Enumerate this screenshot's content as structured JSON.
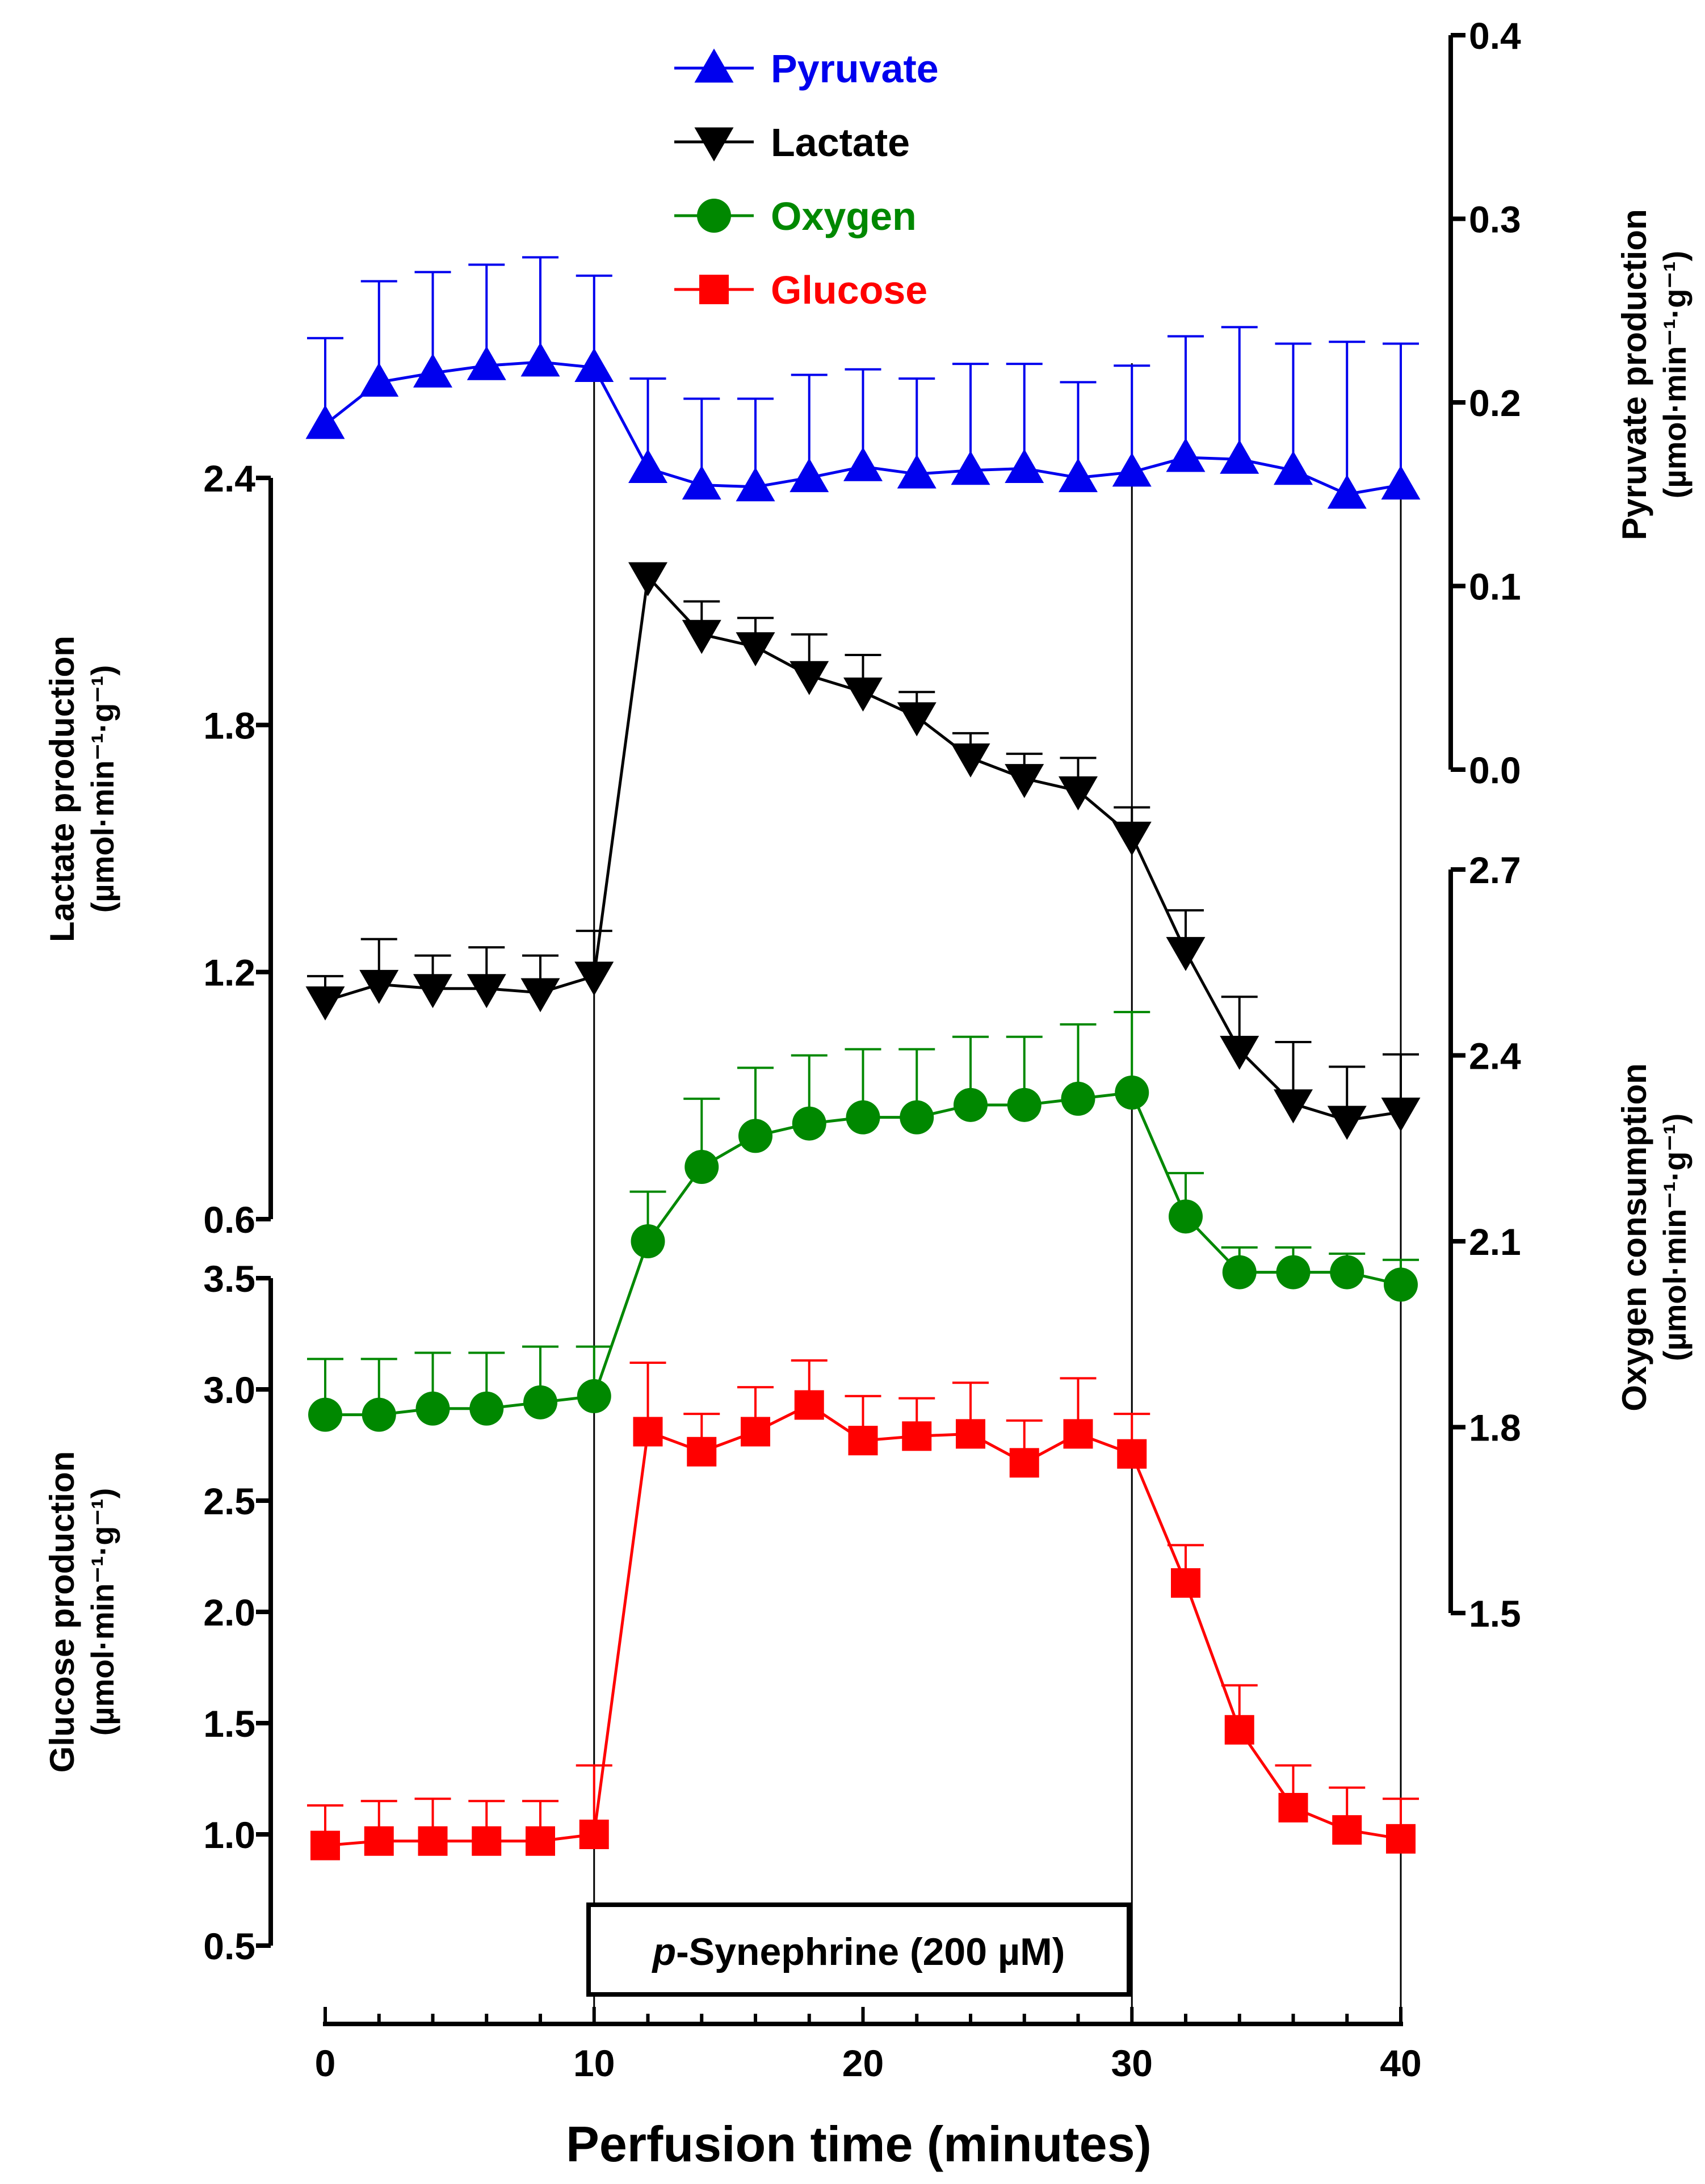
{
  "chart_data": {
    "type": "line",
    "x": [
      0,
      2,
      4,
      6,
      8,
      10,
      12,
      14,
      16,
      18,
      20,
      22,
      24,
      26,
      28,
      30,
      32,
      34,
      36,
      38,
      40
    ],
    "xlabel": "Perfusion time (minutes)",
    "xlim": [
      0,
      40
    ],
    "x_ticks": [
      "0",
      "10",
      "20",
      "30",
      "40"
    ],
    "treatment": {
      "label_prefix": "p",
      "label_rest": "-Synephrine (200 µM)",
      "start": 10,
      "end": 30
    },
    "legend": {
      "position": "top-center",
      "entries": [
        {
          "name": "Pyruvate",
          "marker": "triangle-up",
          "color": "#0000ee"
        },
        {
          "name": "Lactate",
          "marker": "triangle-down",
          "color": "#000000"
        },
        {
          "name": "Oxygen",
          "marker": "circle",
          "color": "#008800"
        },
        {
          "name": "Glucose",
          "marker": "square",
          "color": "#ff0000"
        }
      ]
    },
    "axes": [
      {
        "id": "pyruvate",
        "side": "right",
        "ylabel": "Pyruvate production",
        "yunit_html": "(µmol·min⁻¹·g⁻¹)",
        "ylim": [
          0.0,
          0.4
        ],
        "ticks": [
          "0.0",
          "0.1",
          "0.2",
          "0.3",
          "0.4"
        ]
      },
      {
        "id": "lactate",
        "side": "left",
        "ylabel": "Lactate production",
        "yunit_html": "(µmol·min⁻¹·g⁻¹)",
        "ylim": [
          0.6,
          2.4
        ],
        "ticks": [
          "0.6",
          "1.2",
          "1.8",
          "2.4"
        ]
      },
      {
        "id": "oxygen",
        "side": "right",
        "ylabel": "Oxygen consumption",
        "yunit_html": "(µmol·min⁻¹·g⁻¹)",
        "ylim": [
          1.5,
          2.7
        ],
        "ticks": [
          "1.5",
          "1.8",
          "2.1",
          "2.4",
          "2.7"
        ]
      },
      {
        "id": "glucose",
        "side": "left",
        "ylabel": "Glucose production",
        "yunit_html": "(µmol·min⁻¹·g⁻¹)",
        "ylim": [
          0.5,
          3.5
        ],
        "ticks": [
          "0.5",
          "1.0",
          "1.5",
          "2.0",
          "2.5",
          "3.0",
          "3.5"
        ]
      }
    ],
    "series": [
      {
        "name": "Pyruvate",
        "axis": "pyruvate",
        "color": "#0000ee",
        "marker": "triangle-up",
        "values": [
          0.188,
          0.211,
          0.216,
          0.22,
          0.222,
          0.219,
          0.164,
          0.155,
          0.154,
          0.159,
          0.165,
          0.161,
          0.163,
          0.164,
          0.159,
          0.162,
          0.17,
          0.169,
          0.163,
          0.15,
          0.155
        ],
        "errors": [
          0.047,
          0.055,
          0.055,
          0.055,
          0.057,
          0.05,
          0.049,
          0.047,
          0.048,
          0.056,
          0.053,
          0.052,
          0.058,
          0.057,
          0.052,
          0.058,
          0.066,
          0.072,
          0.069,
          0.083,
          0.077
        ]
      },
      {
        "name": "Lactate",
        "axis": "lactate",
        "color": "#000000",
        "marker": "triangle-down",
        "values": [
          1.13,
          1.17,
          1.16,
          1.16,
          1.15,
          1.19,
          2.16,
          2.02,
          1.99,
          1.92,
          1.88,
          1.82,
          1.72,
          1.67,
          1.64,
          1.53,
          1.25,
          1.01,
          0.88,
          0.84,
          0.86
        ],
        "errors": [
          0.06,
          0.11,
          0.08,
          0.1,
          0.09,
          0.11,
          0.0,
          0.08,
          0.07,
          0.1,
          0.09,
          0.06,
          0.06,
          0.06,
          0.08,
          0.07,
          0.1,
          0.13,
          0.15,
          0.13,
          0.14
        ]
      },
      {
        "name": "Oxygen",
        "axis": "oxygen",
        "color": "#008800",
        "marker": "circle",
        "values": [
          1.82,
          1.82,
          1.83,
          1.83,
          1.84,
          1.85,
          2.1,
          2.22,
          2.27,
          2.29,
          2.3,
          2.3,
          2.32,
          2.32,
          2.33,
          2.34,
          2.14,
          2.05,
          2.05,
          2.05,
          2.03
        ],
        "errors": [
          0.09,
          0.09,
          0.09,
          0.09,
          0.09,
          0.08,
          0.08,
          0.11,
          0.11,
          0.11,
          0.11,
          0.11,
          0.11,
          0.11,
          0.12,
          0.13,
          0.07,
          0.04,
          0.04,
          0.03,
          0.04
        ]
      },
      {
        "name": "Glucose",
        "axis": "glucose",
        "color": "#ff0000",
        "marker": "square",
        "values": [
          0.95,
          0.97,
          0.97,
          0.97,
          0.97,
          1.0,
          2.81,
          2.72,
          2.81,
          2.93,
          2.77,
          2.79,
          2.8,
          2.67,
          2.8,
          2.71,
          2.13,
          1.47,
          1.12,
          1.02,
          0.98
        ],
        "errors": [
          0.18,
          0.18,
          0.19,
          0.18,
          0.18,
          0.31,
          0.31,
          0.17,
          0.2,
          0.2,
          0.2,
          0.17,
          0.23,
          0.19,
          0.25,
          0.18,
          0.17,
          0.2,
          0.19,
          0.19,
          0.18
        ]
      }
    ]
  }
}
